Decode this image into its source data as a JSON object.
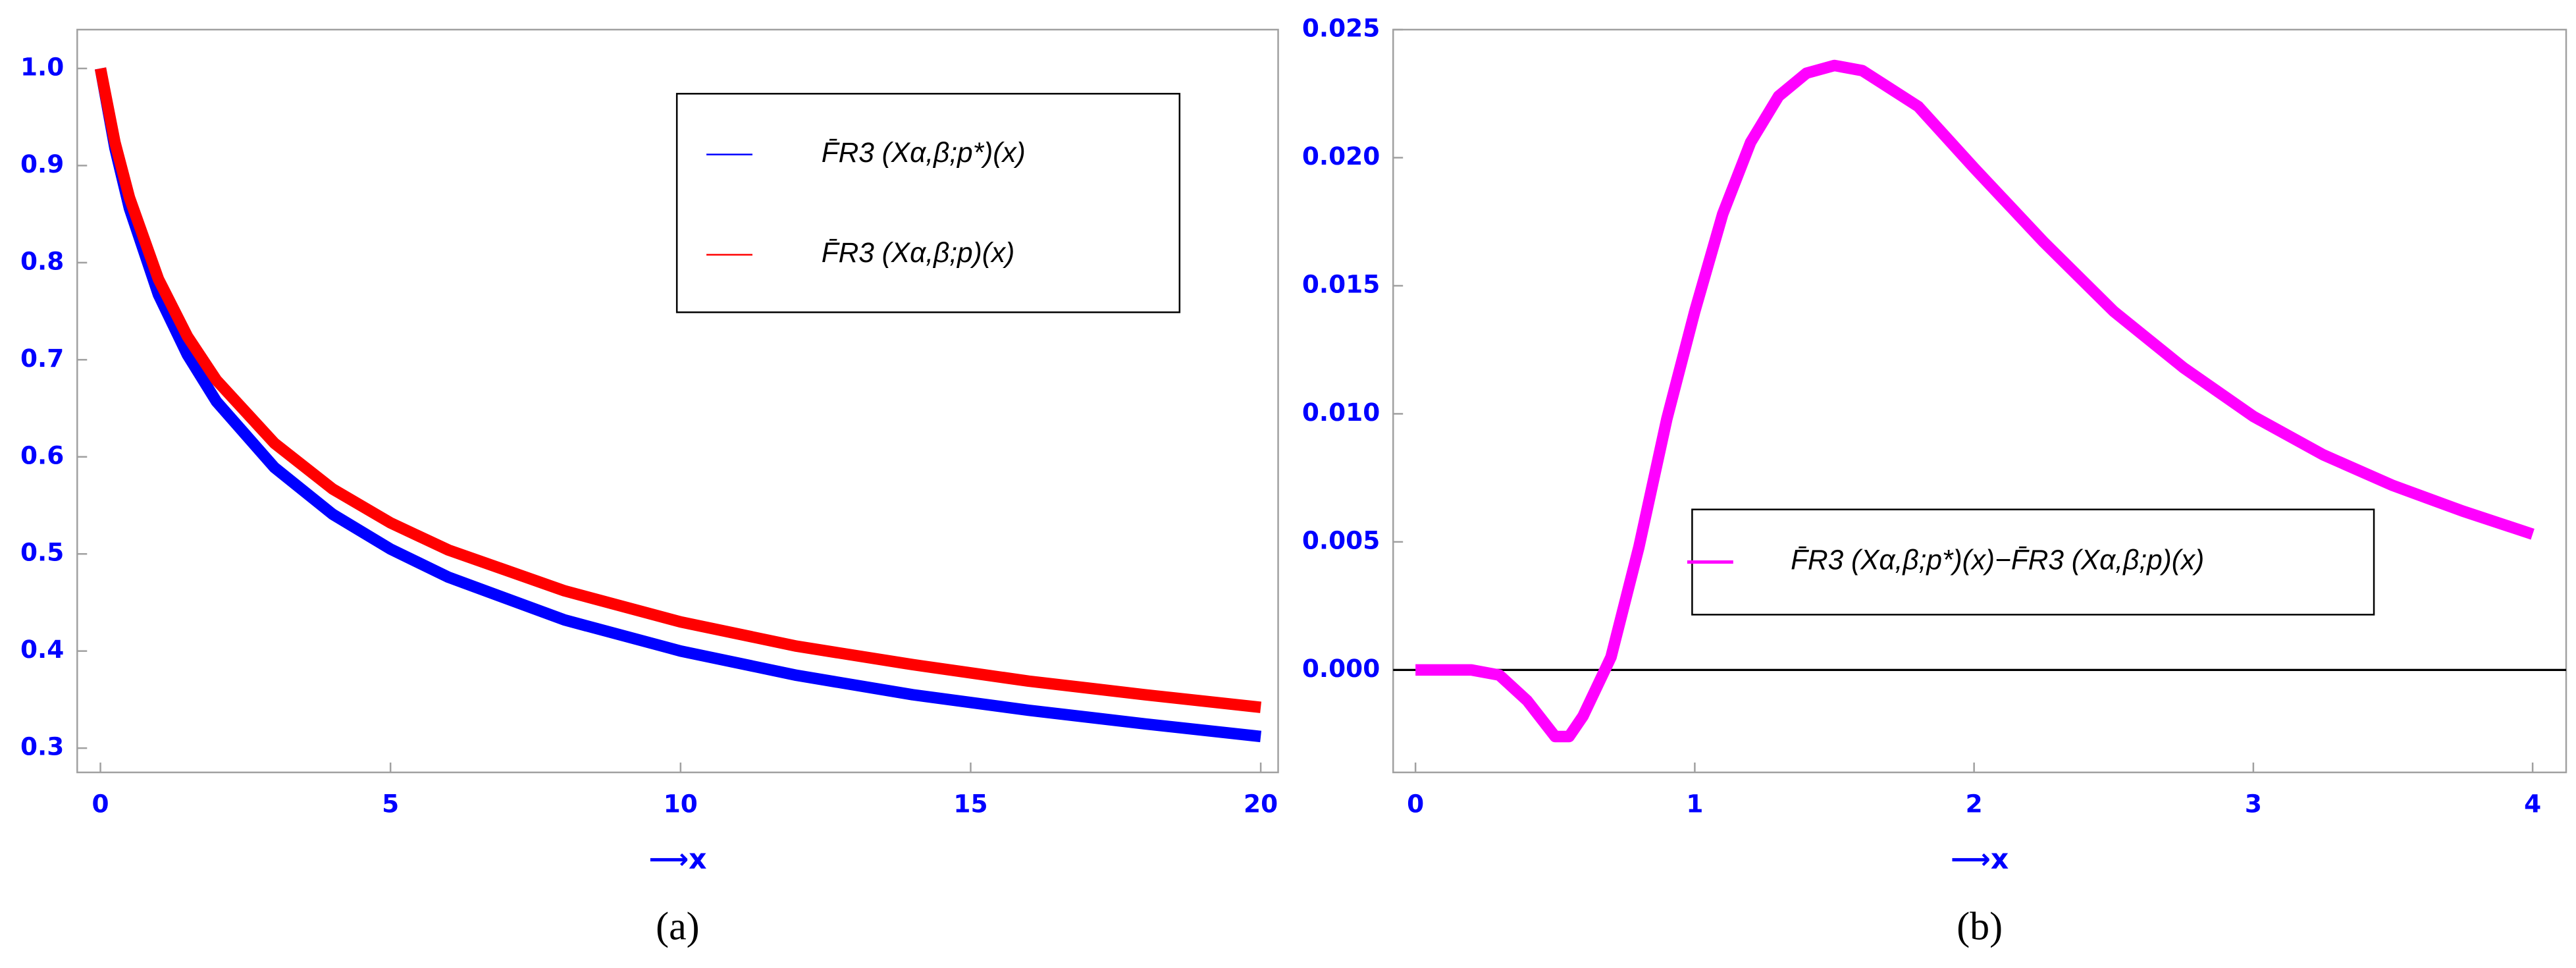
{
  "chart_data": [
    {
      "type": "line",
      "x": [
        0,
        0.25,
        0.5,
        1,
        1.5,
        2,
        3,
        4,
        5,
        6,
        8,
        10,
        12,
        14,
        16,
        18,
        20
      ],
      "series": [
        {
          "name": "F̄R3 (Xα,β;p*)(x)",
          "color": "#0000ff",
          "values": [
            1,
            0.918,
            0.856,
            0.767,
            0.705,
            0.657,
            0.589,
            0.541,
            0.505,
            0.476,
            0.432,
            0.4,
            0.375,
            0.355,
            0.339,
            0.325,
            0.312
          ]
        },
        {
          "name": "F̄R3 (Xα,β;p)(x)",
          "color": "#ff0000",
          "values": [
            1,
            0.924,
            0.867,
            0.783,
            0.724,
            0.679,
            0.614,
            0.567,
            0.532,
            0.504,
            0.462,
            0.43,
            0.405,
            0.386,
            0.369,
            0.355,
            0.342
          ]
        }
      ],
      "xlim": [
        -0.4,
        20.3
      ],
      "ylim": [
        0.275,
        1.04
      ],
      "xticks": [
        0,
        5,
        10,
        15,
        20
      ],
      "yticks": [
        0.3,
        0.4,
        0.5,
        0.6,
        0.7,
        0.8,
        0.9,
        {
          "value": 1,
          "label": "1.0"
        }
      ],
      "xlabel": "⟶x",
      "caption": "(a)",
      "legend": "upper right",
      "zero_line": false
    },
    {
      "type": "line",
      "x": [
        0,
        0.1,
        0.2,
        0.3,
        0.4,
        0.5,
        0.55,
        0.6,
        0.7,
        0.8,
        0.9,
        1.0,
        1.1,
        1.2,
        1.3,
        1.4,
        1.5,
        1.6,
        1.8,
        2.0,
        2.25,
        2.5,
        2.75,
        3.0,
        3.25,
        3.5,
        3.75,
        4.0
      ],
      "series": [
        {
          "name": "F̄R3 (Xα,β;p*)(x)−F̄R3 (Xα,β;p)(x)",
          "color": "#ff00ff",
          "values": [
            0,
            0,
            0,
            -0.0002,
            -0.0012,
            -0.0026,
            -0.0026,
            -0.0018,
            0.0005,
            0.0048,
            0.0098,
            0.014,
            0.0178,
            0.0206,
            0.0224,
            0.0233,
            0.0236,
            0.0234,
            0.022,
            0.0196,
            0.0167,
            0.014,
            0.0118,
            0.0099,
            0.0084,
            0.0072,
            0.0062,
            0.0053
          ]
        }
      ],
      "xlim": [
        -0.08,
        4.12
      ],
      "ylim": [
        -0.004,
        0.025
      ],
      "xticks": [
        0,
        1,
        2,
        3,
        4
      ],
      "yticks": [
        {
          "value": 0,
          "label": "0.000"
        },
        {
          "value": 0.005,
          "label": "0.005"
        },
        {
          "value": 0.01,
          "label": "0.010"
        },
        {
          "value": 0.015,
          "label": "0.015"
        },
        {
          "value": 0.02,
          "label": "0.020"
        },
        {
          "value": 0.025,
          "label": "0.025"
        }
      ],
      "xlabel": "⟶x",
      "caption": "(b)",
      "legend": "center",
      "zero_line": true
    }
  ]
}
